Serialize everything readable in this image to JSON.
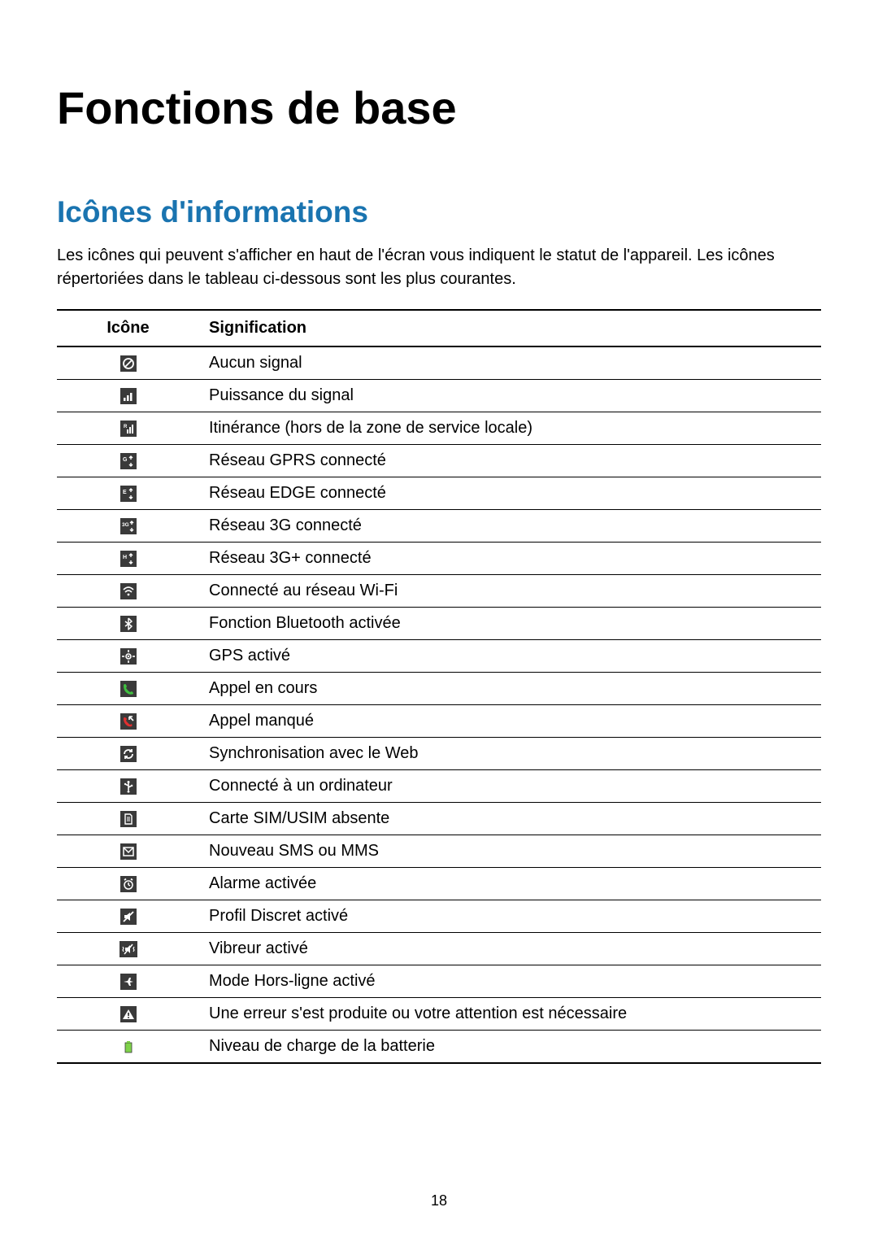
{
  "page": {
    "title": "Fonctions de base",
    "section_title": "Icônes d'informations",
    "section_title_color": "#1a74b0",
    "intro": "Les icônes qui peuvent s'afficher en haut de l'écran vous indiquent le statut de l'appareil. Les icônes répertoriées dans le tableau ci-dessous sont les plus courantes.",
    "page_number": "18"
  },
  "table": {
    "headers": {
      "icon": "Icône",
      "meaning": "Signification"
    },
    "rows": [
      {
        "icon": "no-signal-icon",
        "label": "Aucun signal"
      },
      {
        "icon": "signal-icon",
        "label": "Puissance du signal"
      },
      {
        "icon": "roaming-icon",
        "label": "Itinérance (hors de la zone de service locale)"
      },
      {
        "icon": "gprs-icon",
        "label": "Réseau GPRS connecté"
      },
      {
        "icon": "edge-icon",
        "label": "Réseau EDGE connecté"
      },
      {
        "icon": "3g-icon",
        "label": "Réseau 3G connecté"
      },
      {
        "icon": "3gplus-icon",
        "label": "Réseau 3G+ connecté"
      },
      {
        "icon": "wifi-icon",
        "label": "Connecté au réseau Wi-Fi"
      },
      {
        "icon": "bluetooth-icon",
        "label": "Fonction Bluetooth activée"
      },
      {
        "icon": "gps-icon",
        "label": "GPS activé"
      },
      {
        "icon": "call-icon",
        "label": "Appel en cours"
      },
      {
        "icon": "missed-call-icon",
        "label": "Appel manqué"
      },
      {
        "icon": "sync-icon",
        "label": "Synchronisation avec le Web"
      },
      {
        "icon": "usb-icon",
        "label": "Connecté à un ordinateur"
      },
      {
        "icon": "no-sim-icon",
        "label": "Carte SIM/USIM absente"
      },
      {
        "icon": "sms-icon",
        "label": "Nouveau SMS ou MMS"
      },
      {
        "icon": "alarm-icon",
        "label": "Alarme activée"
      },
      {
        "icon": "mute-icon",
        "label": "Profil Discret activé"
      },
      {
        "icon": "vibrate-icon",
        "label": "Vibreur activé"
      },
      {
        "icon": "airplane-icon",
        "label": "Mode Hors-ligne activé"
      },
      {
        "icon": "error-icon",
        "label": "Une erreur s'est produite ou votre attention est nécessaire"
      },
      {
        "icon": "battery-icon",
        "label": "Niveau de charge de la batterie"
      }
    ]
  },
  "icon_colors": {
    "base_bg": "#3a3a3a",
    "base_fg": "#ffffff",
    "call_green": "#3fbf3f",
    "missed_red": "#e03030",
    "battery_green": "#7fd24a"
  }
}
